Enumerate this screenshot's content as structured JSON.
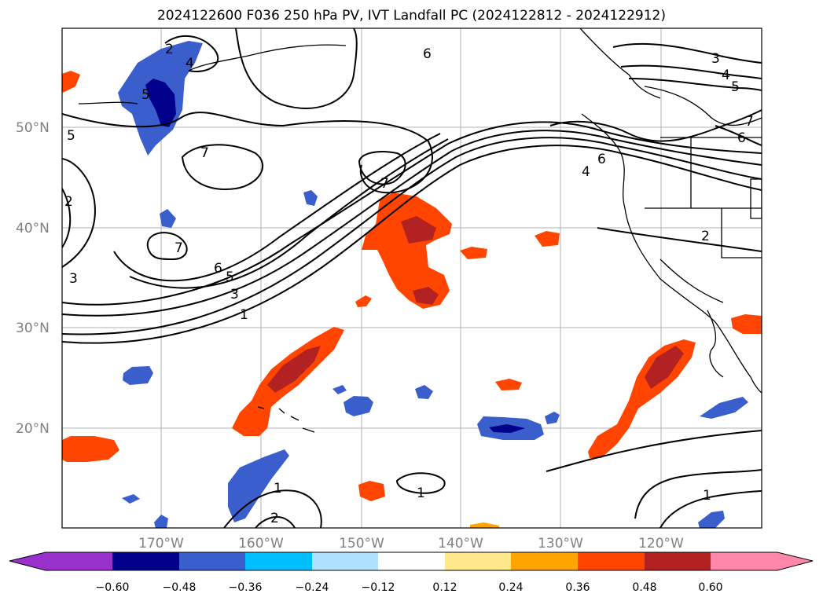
{
  "title": "2024122600 F036 250 hPa PV, IVT Landfall PC (2024122812 - 2024122912)",
  "lat_labels": [
    "50°N",
    "40°N",
    "30°N",
    "20°N"
  ],
  "lon_labels": [
    "170°W",
    "160°W",
    "150°W",
    "140°W",
    "130°W",
    "120°W"
  ],
  "colorbar": {
    "ticks": [
      "−0.60",
      "−0.48",
      "−0.36",
      "−0.24",
      "−0.12",
      "0.12",
      "0.24",
      "0.36",
      "0.48",
      "0.60"
    ],
    "colors": [
      "#9932cc",
      "#00008b",
      "#3a5fcd",
      "#00bfff",
      "#b0e2ff",
      "#ffffff",
      "#ffe98c",
      "#ffa500",
      "#ff4500",
      "#b22222",
      "#ff88aa"
    ]
  },
  "contour_labels": [
    "2",
    "4",
    "5",
    "6",
    "3",
    "4",
    "5",
    "7",
    "6",
    "6",
    "4",
    "7",
    "5",
    "2",
    "7",
    "7",
    "6",
    "5",
    "3",
    "1",
    "3",
    "2",
    "1",
    "1",
    "1",
    "2"
  ]
}
